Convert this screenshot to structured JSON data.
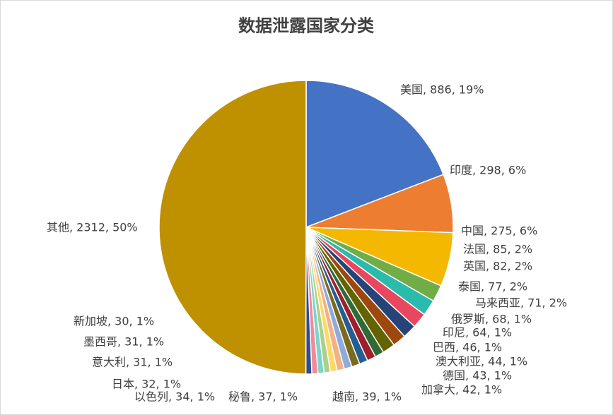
{
  "chart_data": {
    "type": "pie",
    "title": "数据泄露国家分类",
    "values": [
      886,
      298,
      275,
      85,
      82,
      77,
      71,
      68,
      64,
      46,
      44,
      43,
      42,
      39,
      37,
      34,
      32,
      31,
      31,
      30,
      2312
    ],
    "value_labels": [
      "美国, 886, 19%",
      "印度, 298, 6%",
      "中国, 275, 6%",
      "法国, 85, 2%",
      "英国, 82, 2%",
      "泰国, 77, 2%",
      "马来西亚, 71, 2%",
      "俄罗斯, 68, 1%",
      "印尼, 64, 1%",
      "巴西, 46, 1%",
      "澳大利亚, 44, 1%",
      "德国, 43, 1%",
      "加拿大, 42, 1%",
      "越南, 39, 1%",
      "秘鲁, 37, 1%",
      "以色列, 34, 1%",
      "日本, 32, 1%",
      "意大利, 31, 1%",
      "墨西哥, 31, 1%",
      "新加坡, 30, 1%",
      "其他, 2312, 50%"
    ],
    "colors": [
      "#4472c4",
      "#ed7d31",
      "#f4b800",
      "#70ad47",
      "#2bbbad",
      "#e8475f",
      "#264478",
      "#9e480e",
      "#636300",
      "#2e6b36",
      "#a01e2e",
      "#255e91",
      "#7c6a1e",
      "#8faadc",
      "#f4b183",
      "#ffd966",
      "#a9d18e",
      "#7fd3c9",
      "#f08a9a",
      "#2f4c8f",
      "#bf9000"
    ]
  }
}
